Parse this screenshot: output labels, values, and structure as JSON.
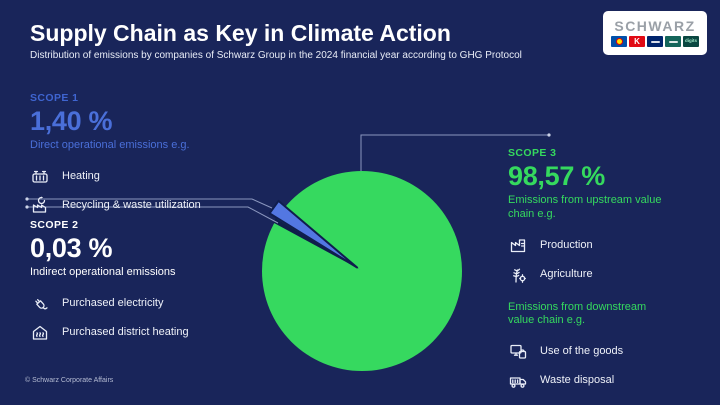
{
  "colors": {
    "background": "#19255a",
    "scope1_blue": "#4a6fd9",
    "scope3_green": "#35d95e",
    "pie_green": "#36d95f",
    "pie_blue": "#5377e2",
    "pie_dark_sliver": "#0f1d4a"
  },
  "header": {
    "title": "Supply Chain as Key in Climate Action",
    "subtitle": "Distribution of emissions by companies of Schwarz Group in the 2024 financial year according to GHG Protocol"
  },
  "logo": {
    "wordmark": "SCHWARZ",
    "kaufland_letter": "K",
    "digits_label": "digits"
  },
  "scope1": {
    "tag": "SCOPE 1",
    "value": "1,40 %",
    "desc": "Direct operational emissions e.g.",
    "items": [
      {
        "icon": "heating-icon",
        "label": "Heating"
      },
      {
        "icon": "recycling-icon",
        "label": "Recycling & waste utilization"
      }
    ]
  },
  "scope2": {
    "tag": "SCOPE 2",
    "value": "0,03 %",
    "desc": "Indirect operational emissions",
    "items": [
      {
        "icon": "electricity-plug-icon",
        "label": "Purchased electricity"
      },
      {
        "icon": "district-heating-icon",
        "label": "Purchased district heating"
      }
    ]
  },
  "scope3": {
    "tag": "SCOPE 3",
    "value": "98,57 %",
    "desc_upstream": "Emissions from upstream value chain e.g.",
    "items_upstream": [
      {
        "icon": "production-icon",
        "label": "Production"
      },
      {
        "icon": "agriculture-icon",
        "label": "Agriculture"
      }
    ],
    "desc_downstream": "Emissions from downstream value chain e.g.",
    "items_downstream": [
      {
        "icon": "goods-icon",
        "label": "Use of the goods"
      },
      {
        "icon": "waste-disposal-icon",
        "label": "Waste disposal"
      }
    ]
  },
  "footer": {
    "credit": "© Schwarz Corporate Affairs"
  },
  "chart_data": {
    "type": "pie",
    "title": "Distribution of emissions by companies of Schwarz Group in the 2024 financial year according to GHG Protocol",
    "unit": "%",
    "slices": [
      {
        "label": "SCOPE 3",
        "value": 98.57,
        "color": "#36d95f",
        "description": "Emissions from upstream and downstream value chain"
      },
      {
        "label": "SCOPE 1",
        "value": 1.4,
        "color": "#5377e2",
        "description": "Direct operational emissions"
      },
      {
        "label": "SCOPE 2",
        "value": 0.03,
        "color": "#0f1d4a",
        "description": "Indirect operational emissions"
      }
    ],
    "layout": {
      "legend": "callout-labels",
      "exploded_slice": "SCOPE 1",
      "labels_shown_as": "side text blocks"
    }
  }
}
